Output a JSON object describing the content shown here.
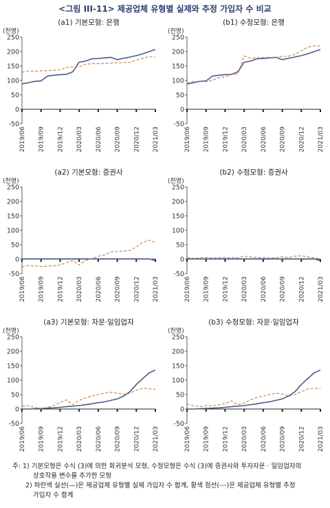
{
  "figure_title": "<그림 III-11> 제공업체 유형별 실제와 추정 가입자 수 비교",
  "notes": [
    "주: 1) 기본모형은 수식 (3)에 의한 회귀분석 모형, 수정모형은 수식 (3)에 증권사와 투자자문 · 일임업자의",
    "상호작용 변수를 추가한 모형",
    "2) 파란색 실선(—)은 제공업체 유형별 실제 가입자 수 합계, 황색 점선(---)은 제공업체 유형별 추정",
    "가입자 수 합계"
  ],
  "colors": {
    "actual": "#4a5a8c",
    "estimated": "#c87a3c",
    "axis": "#333333",
    "zero": "#222222"
  },
  "chart_data": [
    {
      "type": "line",
      "title": "(a1) 기본모형: 은행",
      "unit": "(천명)",
      "ylim": [
        -50,
        250
      ],
      "yticks": [
        250,
        200,
        150,
        100,
        50,
        0,
        -50
      ],
      "xticks": [
        "2019/06",
        "2019/09",
        "2019/12",
        "2020/03",
        "2020/06",
        "2020/09",
        "2020/12",
        "2021/03"
      ],
      "grid": false,
      "series": [
        {
          "style": "solid",
          "values": [
            88,
            92,
            97,
            98,
            115,
            118,
            120,
            121,
            130,
            163,
            167,
            175,
            176,
            178,
            180,
            172,
            177,
            181,
            186,
            192,
            200,
            207
          ]
        },
        {
          "style": "dashed",
          "values": [
            128,
            133,
            132,
            133,
            134,
            135,
            137,
            145,
            147,
            147,
            156,
            158,
            158,
            158,
            160,
            161,
            162,
            163,
            170,
            177,
            182,
            181
          ]
        }
      ]
    },
    {
      "type": "line",
      "title": "(b1) 수정모형: 은행",
      "unit": "(천명)",
      "ylim": [
        -50,
        250
      ],
      "yticks": [
        250,
        200,
        150,
        100,
        50,
        0,
        -50
      ],
      "xticks": [
        "2019/06",
        "2019/09",
        "2019/12",
        "2020/03",
        "2020/06",
        "2020/09",
        "2020/12",
        "2021/03"
      ],
      "grid": false,
      "series": [
        {
          "style": "solid",
          "values": [
            88,
            92,
            97,
            98,
            115,
            118,
            120,
            121,
            130,
            163,
            167,
            175,
            176,
            178,
            180,
            172,
            177,
            181,
            186,
            192,
            200,
            207
          ]
        },
        {
          "style": "dashed",
          "values": [
            90,
            97,
            96,
            96,
            100,
            110,
            112,
            120,
            122,
            185,
            177,
            178,
            179,
            180,
            180,
            183,
            184,
            190,
            203,
            215,
            220,
            219
          ]
        }
      ]
    },
    {
      "type": "line",
      "title": "(a2) 기본모형: 증권사",
      "unit": "(천명)",
      "ylim": [
        -50,
        250
      ],
      "yticks": [
        250,
        200,
        150,
        100,
        50,
        0,
        -50
      ],
      "xticks": [
        "2019/06",
        "2019/09",
        "2019/12",
        "2020/03",
        "2020/06",
        "2020/09",
        "2020/12",
        "2021/03"
      ],
      "grid": false,
      "series": [
        {
          "style": "solid",
          "values": [
            1,
            1,
            1,
            1,
            1,
            1,
            1,
            1,
            1,
            1,
            1,
            1,
            1,
            1,
            1,
            1,
            1,
            1,
            1,
            1,
            1,
            -5
          ]
        },
        {
          "style": "dashed",
          "values": [
            -27,
            -22,
            -24,
            -25,
            -24,
            -23,
            -20,
            -12,
            -5,
            -20,
            -5,
            2,
            10,
            15,
            25,
            27,
            28,
            30,
            42,
            58,
            66,
            58
          ]
        }
      ]
    },
    {
      "type": "line",
      "title": "(b2) 수정모형: 증권사",
      "unit": "(천명)",
      "ylim": [
        -50,
        250
      ],
      "yticks": [
        250,
        200,
        150,
        100,
        50,
        0,
        -50
      ],
      "xticks": [
        "2019/06",
        "2019/09",
        "2019/12",
        "2020/03",
        "2020/06",
        "2020/09",
        "2020/12",
        "2021/03"
      ],
      "grid": false,
      "series": [
        {
          "style": "solid",
          "values": [
            1,
            1,
            1,
            1,
            1,
            1,
            1,
            1,
            1,
            1,
            1,
            1,
            1,
            1,
            1,
            1,
            1,
            1,
            1,
            1,
            1,
            -5
          ]
        },
        {
          "style": "dashed",
          "values": [
            5,
            3,
            5,
            6,
            4,
            5,
            5,
            6,
            5,
            10,
            8,
            6,
            5,
            4,
            5,
            8,
            6,
            10,
            12,
            8,
            5,
            0
          ]
        }
      ]
    },
    {
      "type": "line",
      "title": "(a3) 기본모형: 자문·일임업자",
      "unit": "(천명)",
      "ylim": [
        -50,
        250
      ],
      "yticks": [
        250,
        200,
        150,
        100,
        50,
        0,
        -50
      ],
      "xticks": [
        "2019/06",
        "2019/09",
        "2019/12",
        "2020/03",
        "2020/06",
        "2020/09",
        "2020/12",
        "2021/03"
      ],
      "grid": false,
      "series": [
        {
          "style": "solid",
          "values": [
            0,
            0,
            1,
            2,
            3,
            4,
            6,
            8,
            10,
            12,
            15,
            18,
            22,
            25,
            30,
            35,
            45,
            60,
            85,
            105,
            125,
            135
          ]
        },
        {
          "style": "dashed",
          "values": [
            10,
            12,
            5,
            2,
            5,
            12,
            22,
            32,
            15,
            30,
            38,
            45,
            50,
            55,
            58,
            55,
            50,
            55,
            65,
            72,
            70,
            68
          ]
        }
      ]
    },
    {
      "type": "line",
      "title": "(b3) 수정모형: 자문·일임업자",
      "unit": "(천명)",
      "ylim": [
        -50,
        250
      ],
      "yticks": [
        250,
        200,
        150,
        100,
        50,
        0,
        -50
      ],
      "xticks": [
        "2019/06",
        "2019/09",
        "2019/12",
        "2020/03",
        "2020/06",
        "2020/09",
        "2020/12",
        "2021/03"
      ],
      "grid": false,
      "series": [
        {
          "style": "solid",
          "values": [
            0,
            0,
            1,
            2,
            3,
            4,
            6,
            8,
            10,
            12,
            15,
            18,
            22,
            25,
            30,
            35,
            45,
            60,
            85,
            105,
            125,
            135
          ]
        },
        {
          "style": "dashed",
          "values": [
            18,
            12,
            8,
            12,
            10,
            15,
            18,
            28,
            15,
            20,
            32,
            40,
            45,
            50,
            55,
            52,
            45,
            50,
            60,
            70,
            72,
            70
          ]
        }
      ]
    }
  ]
}
